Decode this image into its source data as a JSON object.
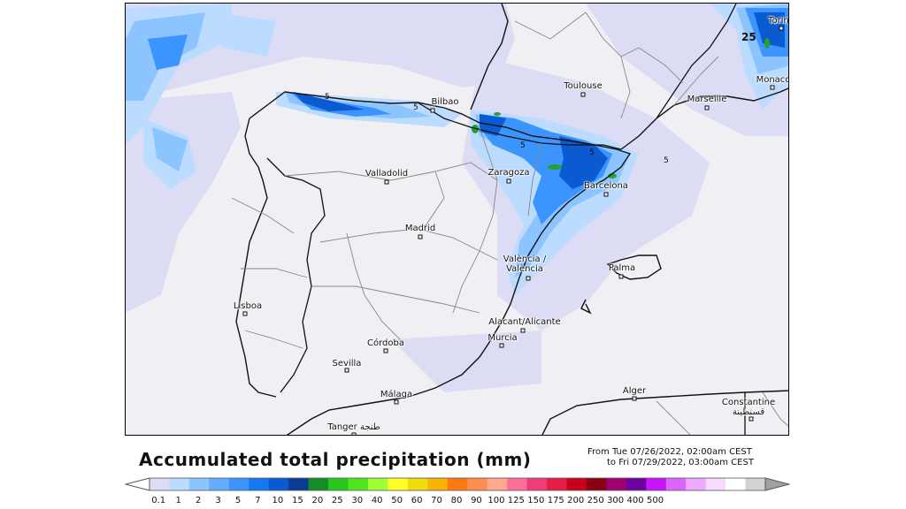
{
  "map": {
    "title": "Accumulated total precipitation (mm)",
    "period_from": "From Tue 07/26/2022, 02:00am CEST",
    "period_to": "to Fri 07/29/2022, 03:00am CEST",
    "contour_labels": [
      "5",
      "5",
      "5",
      "5",
      "5",
      "25"
    ],
    "cities": [
      {
        "id": "bilbao",
        "name": "Bilbao"
      },
      {
        "id": "toulouse",
        "name": "Toulouse"
      },
      {
        "id": "marseille",
        "name": "Marseille"
      },
      {
        "id": "monaco",
        "name": "Monaco"
      },
      {
        "id": "torino",
        "name": "Torin"
      },
      {
        "id": "valladolid",
        "name": "Valladolid"
      },
      {
        "id": "zaragoza",
        "name": "Zaragoza"
      },
      {
        "id": "barcelona",
        "name": "Barcelona"
      },
      {
        "id": "madrid",
        "name": "Madrid"
      },
      {
        "id": "valencia",
        "name": "València / València"
      },
      {
        "id": "palma",
        "name": "Palma"
      },
      {
        "id": "lisboa",
        "name": "Lisboa"
      },
      {
        "id": "alicante",
        "name": "Alacant/Alicante"
      },
      {
        "id": "murcia",
        "name": "Murcia"
      },
      {
        "id": "cordoba",
        "name": "Córdoba"
      },
      {
        "id": "sevilla",
        "name": "Sevilla"
      },
      {
        "id": "malaga",
        "name": "Málaga"
      },
      {
        "id": "alger",
        "name": "Alger"
      },
      {
        "id": "constantine",
        "name": "Constantine قسنطينة"
      },
      {
        "id": "tanger",
        "name": "Tanger طنجة"
      }
    ]
  },
  "legend": {
    "colors": [
      "#dcdcf5",
      "#bcdcff",
      "#8cc4ff",
      "#64acff",
      "#3c94ff",
      "#1478f0",
      "#0a5ad2",
      "#0a3c96",
      "#148c28",
      "#28c81e",
      "#50e61e",
      "#a0ff32",
      "#ffff28",
      "#f0dc0a",
      "#fab400",
      "#ff7814",
      "#ff8c50",
      "#ffaa8c",
      "#ff6e96",
      "#f03c78",
      "#e61e46",
      "#c8001e",
      "#8c0014",
      "#a0006e",
      "#6e00a0",
      "#c814ff",
      "#dc64ff",
      "#eeaaff",
      "#f8dcff",
      "#ffffff",
      "#d2d2d2"
    ],
    "labels": [
      "0.1",
      "1",
      "2",
      "3",
      "5",
      "7",
      "10",
      "15",
      "20",
      "25",
      "30",
      "40",
      "50",
      "60",
      "70",
      "80",
      "90",
      "100",
      "125",
      "150",
      "175",
      "200",
      "250",
      "300",
      "400",
      "500"
    ]
  }
}
